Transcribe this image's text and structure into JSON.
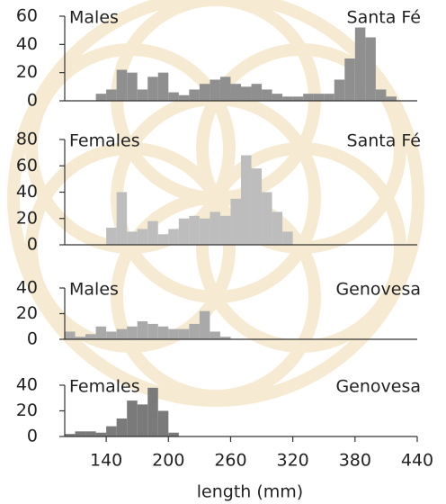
{
  "chart_data": [
    {
      "type": "histogram",
      "title": "Males",
      "subtitle": "Santa Fé",
      "color": "#8f8f8f",
      "bins": [
        100,
        110,
        120,
        130,
        140,
        150,
        160,
        170,
        180,
        190,
        200,
        210,
        220,
        230,
        240,
        250,
        260,
        270,
        280,
        290,
        300,
        310,
        320,
        330,
        340,
        350,
        360,
        370,
        380,
        390,
        400,
        410,
        420
      ],
      "values": [
        0,
        0,
        0,
        5,
        8,
        22,
        20,
        8,
        17,
        20,
        6,
        4,
        8,
        12,
        15,
        17,
        12,
        10,
        12,
        8,
        5,
        3,
        3,
        5,
        5,
        5,
        15,
        30,
        52,
        45,
        8,
        3
      ],
      "xlim": [
        100,
        440
      ],
      "ylim": [
        0,
        60
      ],
      "yticks": [
        0,
        20,
        40,
        60
      ]
    },
    {
      "type": "histogram",
      "title": "Females",
      "subtitle": "Santa Fé",
      "color": "#bdbdbd",
      "bins": [
        100,
        110,
        120,
        130,
        140,
        150,
        160,
        170,
        180,
        190,
        200,
        210,
        220,
        230,
        240,
        250,
        260,
        270,
        280,
        290,
        300,
        310,
        320,
        330,
        340,
        350,
        360,
        370,
        380,
        390,
        400,
        410,
        420
      ],
      "values": [
        0,
        0,
        0,
        0,
        13,
        40,
        10,
        12,
        18,
        8,
        12,
        20,
        22,
        20,
        25,
        22,
        35,
        68,
        58,
        40,
        25,
        10,
        0,
        0,
        0,
        0,
        0,
        0,
        0,
        0,
        0,
        0
      ],
      "xlim": [
        100,
        440
      ],
      "ylim": [
        0,
        80
      ],
      "yticks": [
        0,
        20,
        40,
        60,
        80
      ]
    },
    {
      "type": "histogram",
      "title": "Males",
      "subtitle": "Genovesa",
      "color": "#a9a9a9",
      "bins": [
        100,
        110,
        120,
        130,
        140,
        150,
        160,
        170,
        180,
        190,
        200,
        210,
        220,
        230,
        240,
        250,
        260,
        270,
        280,
        290,
        300,
        310,
        320,
        330,
        340,
        350,
        360,
        370,
        380,
        390,
        400,
        410,
        420
      ],
      "values": [
        6,
        2,
        4,
        10,
        6,
        8,
        10,
        14,
        12,
        10,
        8,
        8,
        12,
        22,
        6,
        2,
        0,
        0,
        0,
        0,
        0,
        0,
        0,
        0,
        0,
        0,
        0,
        0,
        0,
        0,
        0,
        0
      ],
      "xlim": [
        100,
        440
      ],
      "ylim": [
        0,
        40
      ],
      "yticks": [
        0,
        20,
        40
      ]
    },
    {
      "type": "histogram",
      "title": "Females",
      "subtitle": "Genovesa",
      "color": "#7a7a7a",
      "bins": [
        100,
        110,
        120,
        130,
        140,
        150,
        160,
        170,
        180,
        190,
        200,
        210,
        220,
        230,
        240,
        250,
        260,
        270,
        280,
        290,
        300,
        310,
        320,
        330,
        340,
        350,
        360,
        370,
        380,
        390,
        400,
        410,
        420
      ],
      "values": [
        2,
        4,
        4,
        3,
        8,
        14,
        28,
        25,
        38,
        20,
        3,
        0,
        0,
        0,
        0,
        0,
        0,
        0,
        0,
        0,
        0,
        0,
        0,
        0,
        0,
        0,
        0,
        0,
        0,
        0,
        0,
        0
      ],
      "xlim": [
        100,
        440
      ],
      "ylim": [
        0,
        40
      ],
      "yticks": [
        0,
        20,
        40
      ],
      "xticks": [
        140,
        200,
        260,
        320,
        380,
        440
      ],
      "xlabel": "length (mm)"
    }
  ]
}
